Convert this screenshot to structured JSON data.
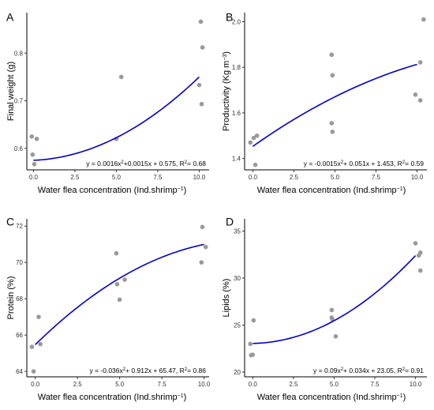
{
  "colors": {
    "fit": "#0000cc",
    "point": "#999999",
    "axis": "#000000"
  },
  "chart_data": [
    {
      "type": "scatter",
      "panel": "A",
      "xlabel": "Water flea concentration (Ind.shrimp",
      "xlabel_sup": "−1",
      "xlabel_end": ")",
      "ylabel": "Final weight  (g)",
      "xlim": [
        -0.4,
        10.6
      ],
      "ylim": [
        0.555,
        0.885
      ],
      "xticks": [
        {
          "v": 0,
          "t": "0.0"
        },
        {
          "v": 2.5,
          "t": "2.5"
        },
        {
          "v": 5,
          "t": "5.0"
        },
        {
          "v": 7.5,
          "t": "7.5"
        },
        {
          "v": 10,
          "t": "10.0"
        }
      ],
      "yticks": [
        {
          "v": 0.6,
          "t": "0.6"
        },
        {
          "v": 0.7,
          "t": "0.7"
        },
        {
          "v": 0.8,
          "t": "0.8"
        }
      ],
      "points": [
        [
          -0.1,
          0.625
        ],
        [
          0.2,
          0.62
        ],
        [
          -0.05,
          0.587
        ],
        [
          0.05,
          0.567
        ],
        [
          5.0,
          0.62
        ],
        [
          5.3,
          0.75
        ],
        [
          10.1,
          0.866
        ],
        [
          10.2,
          0.812
        ],
        [
          10.0,
          0.733
        ],
        [
          10.15,
          0.693
        ]
      ],
      "fit": {
        "a": 0.0016,
        "b": 0.0015,
        "c": 0.575,
        "from": 0,
        "to": 10
      },
      "equation": {
        "p1": "y = 0.0016x",
        "sup": "2",
        "p2": "+0.0015x + 0.575, R",
        "sup2": "2",
        "p3": "= 0.68"
      }
    },
    {
      "type": "scatter",
      "panel": "B",
      "xlabel": "Water flea concentration (Ind.shrimp",
      "xlabel_sup": "−1",
      "xlabel_end": ")",
      "ylabel": "Productivity  (Kg m",
      "ylabel_sup": "−3",
      "ylabel_end": ")",
      "xlim": [
        -0.5,
        10.6
      ],
      "ylim": [
        1.35,
        2.04
      ],
      "xticks": [
        {
          "v": 0,
          "t": "0.0"
        },
        {
          "v": 2.5,
          "t": "2.5"
        },
        {
          "v": 5,
          "t": "5.0"
        },
        {
          "v": 7.5,
          "t": "7.5"
        },
        {
          "v": 10,
          "t": "10.0"
        }
      ],
      "yticks": [
        {
          "v": 1.4,
          "t": "1.4"
        },
        {
          "v": 1.6,
          "t": "1.6"
        },
        {
          "v": 1.8,
          "t": "1.8"
        },
        {
          "v": 2.0,
          "t": "2.0"
        }
      ],
      "points": [
        [
          -0.15,
          1.47
        ],
        [
          0.05,
          1.49
        ],
        [
          0.25,
          1.5
        ],
        [
          0.15,
          1.372
        ],
        [
          4.8,
          1.855
        ],
        [
          4.85,
          1.765
        ],
        [
          4.8,
          1.555
        ],
        [
          4.85,
          1.517
        ],
        [
          10.4,
          2.01
        ],
        [
          10.2,
          1.822
        ],
        [
          9.9,
          1.68
        ],
        [
          10.2,
          1.655
        ]
      ],
      "fit": {
        "a": -0.0015,
        "b": 0.051,
        "c": 1.453,
        "from": 0,
        "to": 10
      },
      "equation": {
        "p1": "y = -0.0015x",
        "sup": "2",
        "p2": "+ 0.051x + 1.453, R",
        "sup2": "2",
        "p3": "= 0.59"
      }
    },
    {
      "type": "scatter",
      "panel": "C",
      "xlabel": "Water flea concentration (Ind.shrimp",
      "xlabel_sup": "−1",
      "xlabel_end": ")",
      "ylabel": "Protein (%)",
      "xlim": [
        -0.5,
        10.3
      ],
      "ylim": [
        63.7,
        72.4
      ],
      "xticks": [
        {
          "v": 0,
          "t": "0.0"
        },
        {
          "v": 2.5,
          "t": "2.5"
        },
        {
          "v": 5,
          "t": "5.0"
        },
        {
          "v": 7.5,
          "t": "7.5"
        },
        {
          "v": 10,
          "t": "10.0"
        }
      ],
      "yticks": [
        {
          "v": 64,
          "t": "64"
        },
        {
          "v": 66,
          "t": "66"
        },
        {
          "v": 68,
          "t": "68"
        },
        {
          "v": 70,
          "t": "70"
        },
        {
          "v": 72,
          "t": "72"
        }
      ],
      "points": [
        [
          -0.2,
          65.35
        ],
        [
          0.3,
          65.5
        ],
        [
          0.2,
          67.0
        ],
        [
          -0.1,
          64.0
        ],
        [
          4.8,
          70.5
        ],
        [
          4.85,
          68.8
        ],
        [
          5.0,
          67.95
        ],
        [
          5.3,
          69.05
        ],
        [
          9.9,
          71.95
        ],
        [
          10.1,
          70.85
        ],
        [
          9.85,
          70.0
        ]
      ],
      "fit": {
        "a": -0.036,
        "b": 0.912,
        "c": 65.47,
        "from": 0,
        "to": 10
      },
      "equation": {
        "p1": "y = -0.036x",
        "sup": "2",
        "p2": "+ 0.912x + 65.47, R",
        "sup2": "2",
        "p3": "= 0.86"
      }
    },
    {
      "type": "scatter",
      "panel": "D",
      "xlabel": "Water flea concentration (Ind.shrimp",
      "xlabel_sup": "−1",
      "xlabel_end": ")",
      "ylabel": "Lipids (%)",
      "xlim": [
        -0.5,
        10.7
      ],
      "ylim": [
        19.5,
        36.3
      ],
      "xticks": [
        {
          "v": 0,
          "t": "0.0"
        },
        {
          "v": 2.5,
          "t": "2.5"
        },
        {
          "v": 5,
          "t": "5.0"
        },
        {
          "v": 7.5,
          "t": "7.5"
        },
        {
          "v": 10,
          "t": "10.0"
        }
      ],
      "yticks": [
        {
          "v": 20,
          "t": "20"
        },
        {
          "v": 25,
          "t": "25"
        },
        {
          "v": 30,
          "t": "30"
        },
        {
          "v": 35,
          "t": "35"
        }
      ],
      "points": [
        [
          -0.15,
          23.0
        ],
        [
          0.05,
          25.5
        ],
        [
          -0.1,
          21.8
        ],
        [
          0.0,
          21.85
        ],
        [
          4.85,
          26.6
        ],
        [
          4.85,
          25.8
        ],
        [
          4.9,
          25.6
        ],
        [
          5.1,
          23.8
        ],
        [
          10.0,
          33.7
        ],
        [
          10.3,
          32.7
        ],
        [
          10.2,
          32.4
        ],
        [
          10.3,
          30.8
        ]
      ],
      "fit": {
        "a": 0.09,
        "b": 0.034,
        "c": 23.05,
        "from": 0,
        "to": 10
      },
      "equation": {
        "p1": "y = 0.09x",
        "sup": "2",
        "p2": "+ 0.034x + 23.05, R",
        "sup2": "2",
        "p3": "= 0.91"
      }
    }
  ]
}
